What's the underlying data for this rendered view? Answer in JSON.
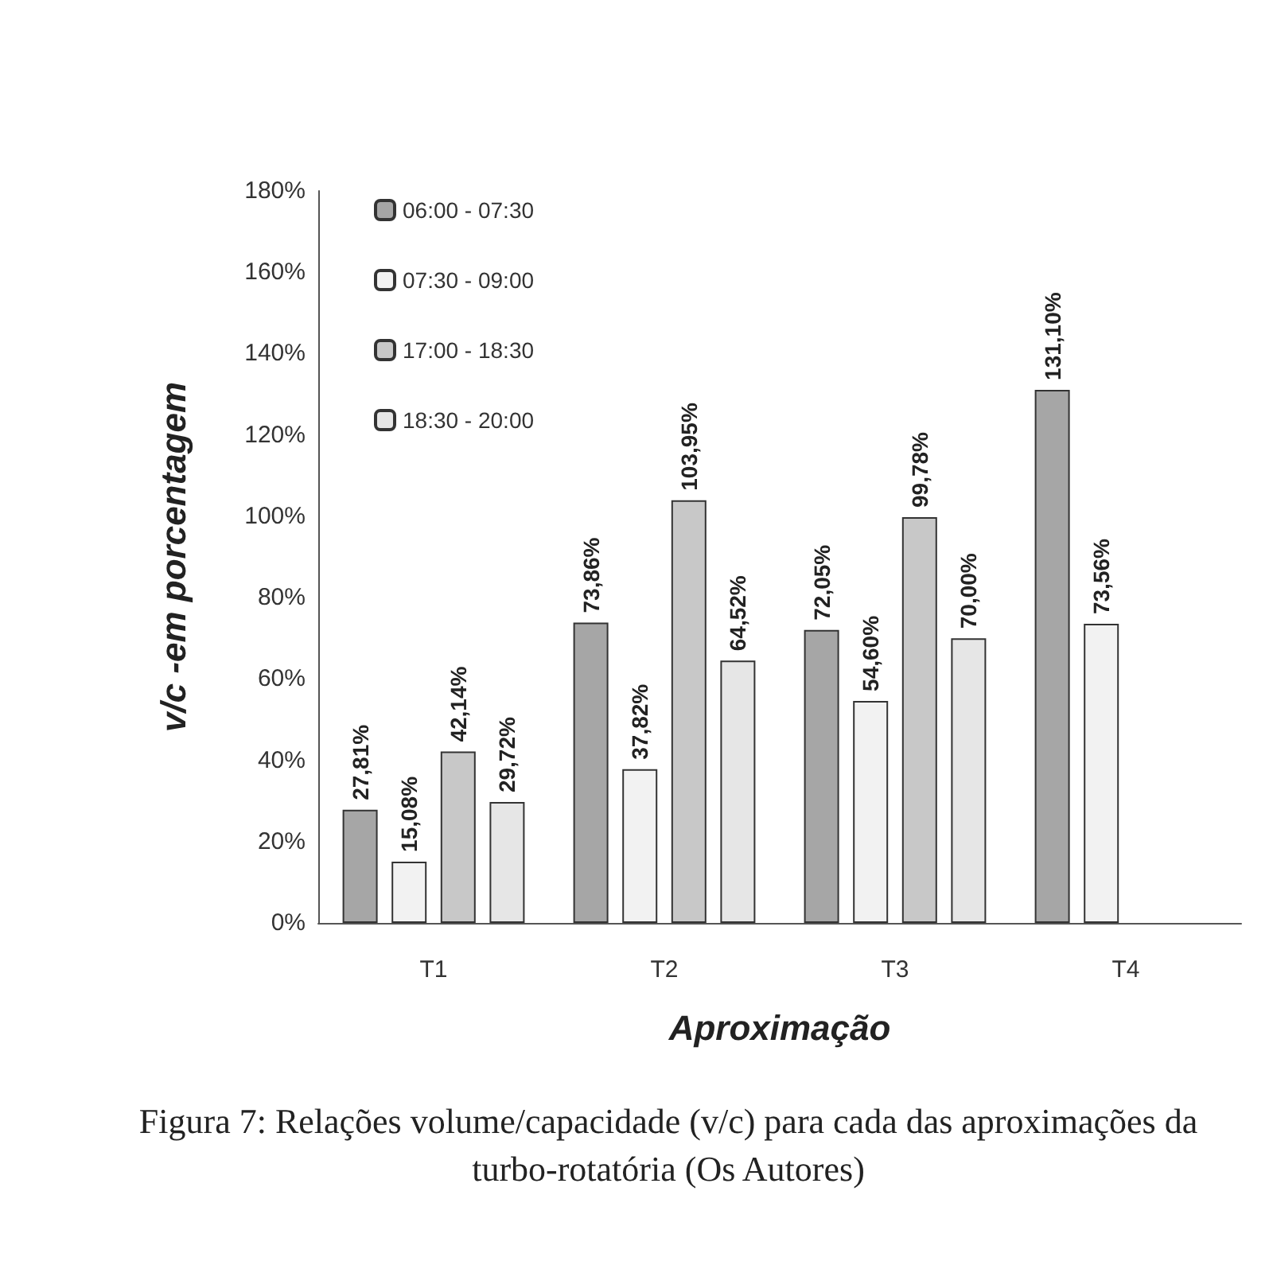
{
  "chart_data": {
    "type": "bar",
    "xlabel": "Aproximação",
    "ylabel": "v/c -em porcentagem",
    "categories": [
      "T1",
      "T2",
      "T3",
      "T4"
    ],
    "series": [
      {
        "name": "06:00 - 07:30",
        "color": "#a6a6a6",
        "values": [
          27.81,
          73.86,
          72.05,
          131.1
        ],
        "value_labels": [
          "27,81%",
          "73,86%",
          "72,05%",
          "131,10%"
        ]
      },
      {
        "name": "07:30 - 09:00",
        "color": "#f2f2f2",
        "values": [
          15.08,
          37.82,
          54.6,
          73.56
        ],
        "value_labels": [
          "15,08%",
          "37,82%",
          "54,60%",
          "73,56%"
        ]
      },
      {
        "name": "17:00 - 18:30",
        "color": "#c8c8c8",
        "values": [
          42.14,
          103.95,
          99.78,
          null
        ],
        "value_labels": [
          "42,14%",
          "103,95%",
          "99,78%",
          null
        ]
      },
      {
        "name": "18:30 - 20:00",
        "color": "#e6e6e6",
        "values": [
          29.72,
          64.52,
          70.0,
          null
        ],
        "value_labels": [
          "29,72%",
          "64,52%",
          "70,00%",
          null
        ]
      }
    ],
    "ylim": [
      0,
      180
    ],
    "yticks": [
      {
        "value": 0,
        "label": "0%"
      },
      {
        "value": 20,
        "label": "20%"
      },
      {
        "value": 40,
        "label": "40%"
      },
      {
        "value": 60,
        "label": "60%"
      },
      {
        "value": 80,
        "label": "80%"
      },
      {
        "value": 100,
        "label": "100%"
      },
      {
        "value": 120,
        "label": "120%"
      },
      {
        "value": 140,
        "label": "140%"
      },
      {
        "value": 160,
        "label": "160%"
      },
      {
        "value": 180,
        "label": "180%"
      }
    ],
    "grid": false,
    "legend": "top left",
    "annotations": [
      "Figura 7: Relações volume/capacidade (v/c) para cada das aproximações da turbo-rotatória (Os Autores)"
    ]
  }
}
